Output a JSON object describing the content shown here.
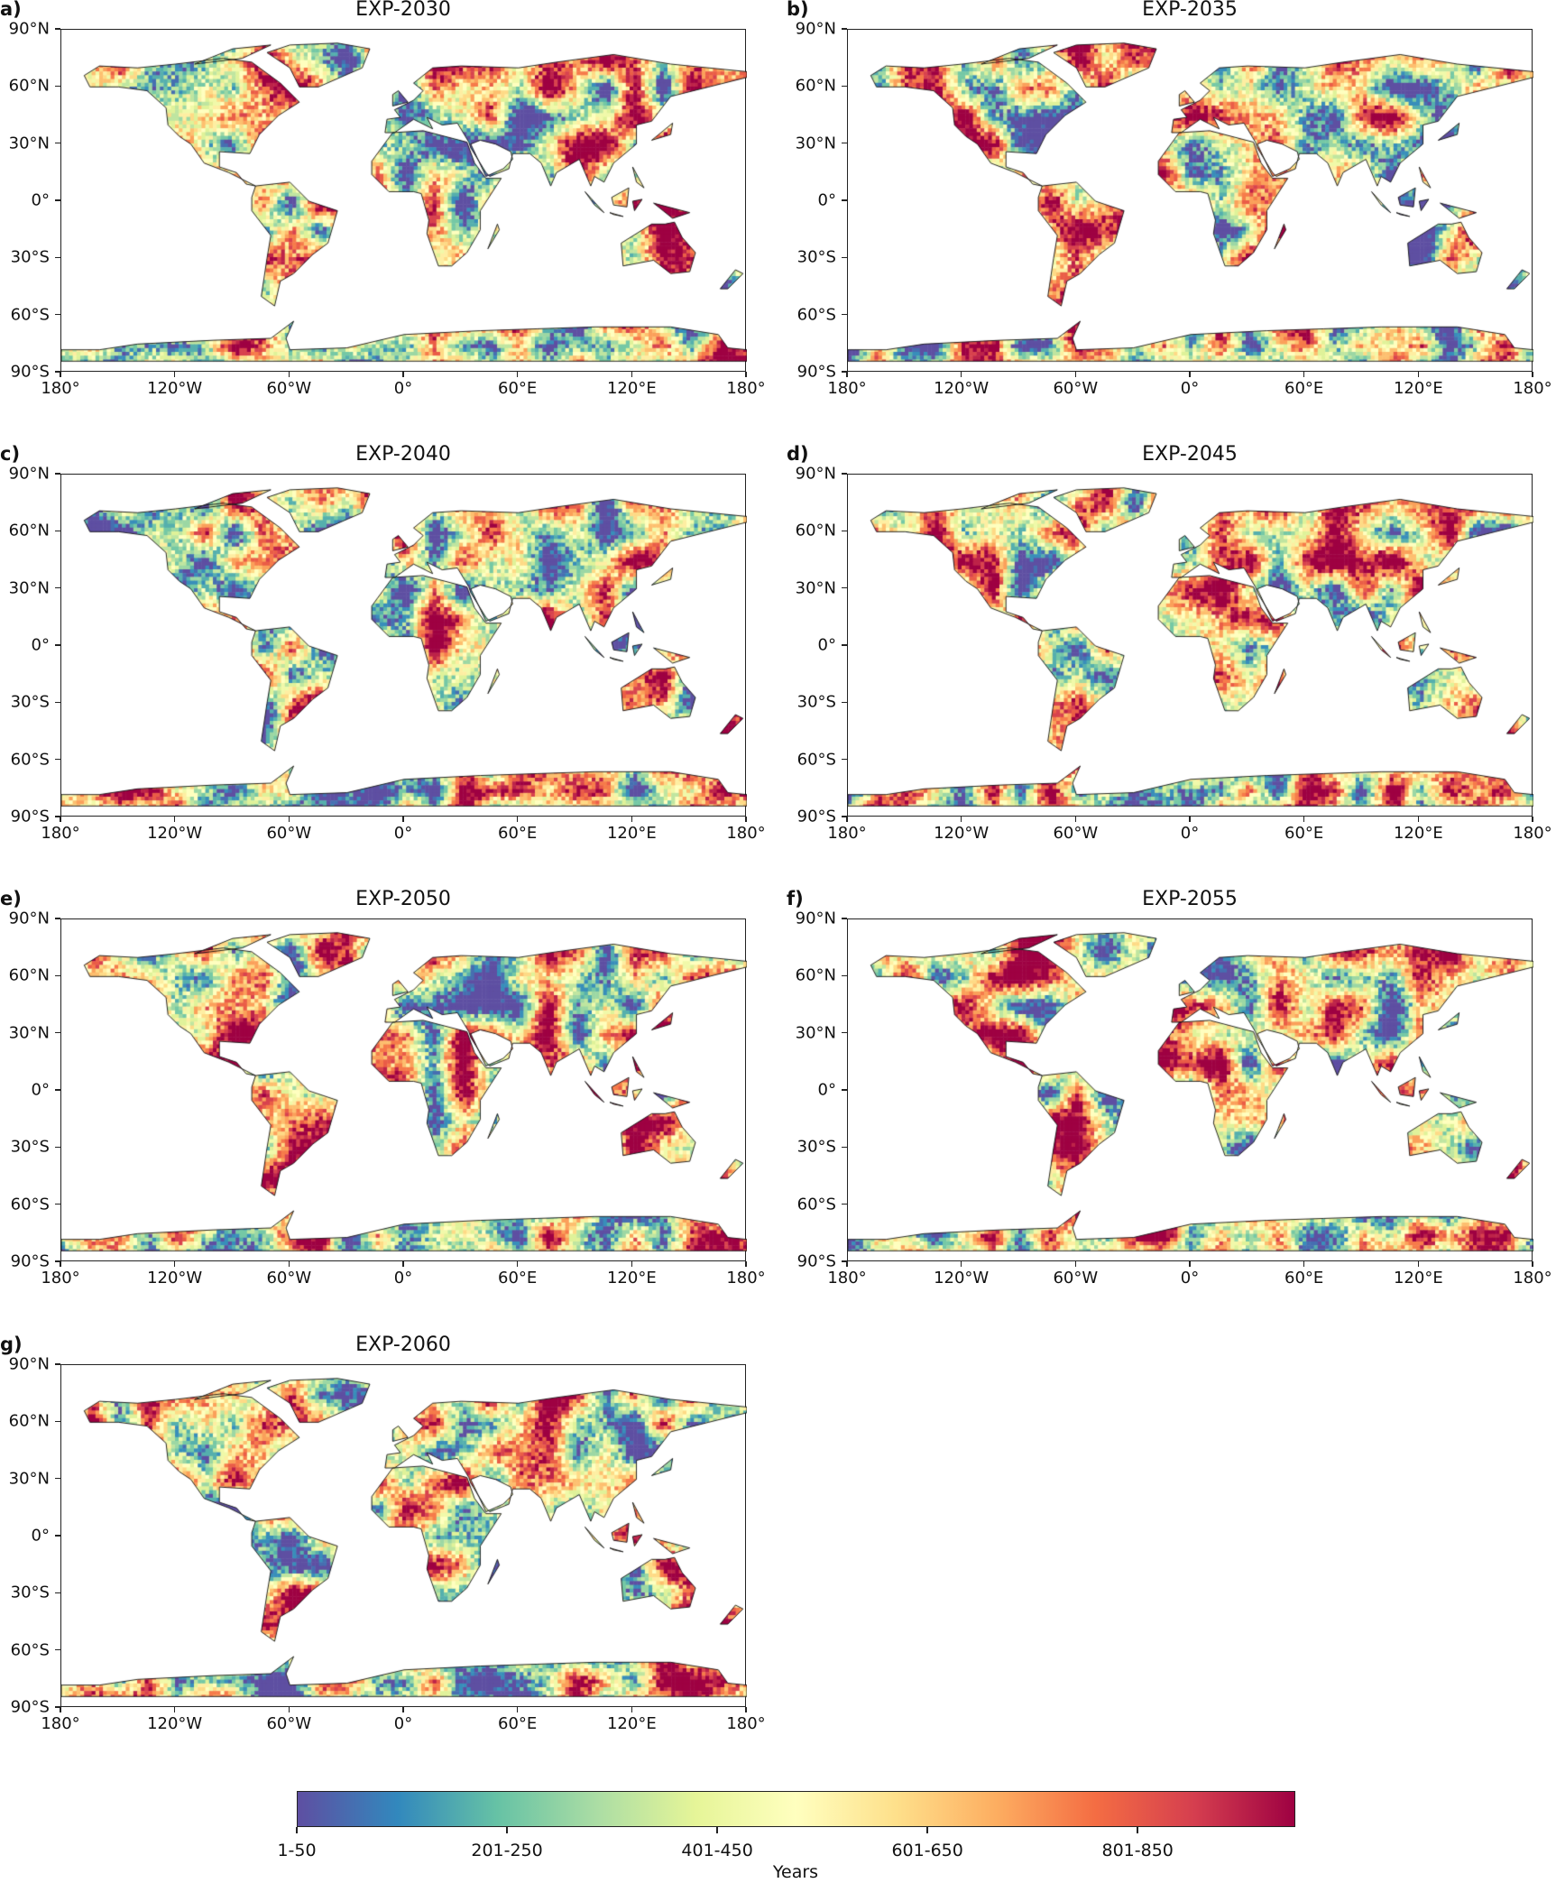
{
  "chart_data": {
    "type": "heatmap",
    "projection": "PlateCarree",
    "panels": [
      {
        "label": "a)",
        "title": "EXP-2030"
      },
      {
        "label": "b)",
        "title": "EXP-2035"
      },
      {
        "label": "c)",
        "title": "EXP-2040"
      },
      {
        "label": "d)",
        "title": "EXP-2045"
      },
      {
        "label": "e)",
        "title": "EXP-2050"
      },
      {
        "label": "f)",
        "title": "EXP-2055"
      },
      {
        "label": "g)",
        "title": "EXP-2060"
      }
    ],
    "x_ticks": [
      {
        "value": -180,
        "label": "180°"
      },
      {
        "value": -120,
        "label": "120°W"
      },
      {
        "value": -60,
        "label": "60°W"
      },
      {
        "value": 0,
        "label": "0°"
      },
      {
        "value": 60,
        "label": "60°E"
      },
      {
        "value": 120,
        "label": "120°E"
      },
      {
        "value": 180,
        "label": "180°"
      }
    ],
    "y_ticks": [
      {
        "value": 90,
        "label": "90°N"
      },
      {
        "value": 60,
        "label": "60°N"
      },
      {
        "value": 30,
        "label": "30°N"
      },
      {
        "value": 0,
        "label": "0°"
      },
      {
        "value": -30,
        "label": "30°S"
      },
      {
        "value": -60,
        "label": "60°S"
      },
      {
        "value": -90,
        "label": "90°S"
      }
    ],
    "xlim": [
      -180,
      180
    ],
    "ylim": [
      -90,
      90
    ],
    "colorbar": {
      "label": "Years",
      "colormap": "Spectral_r",
      "range": [
        1,
        950
      ],
      "bin_width": 50,
      "n_bins": 19,
      "colors": [
        "#5e4fa2",
        "#3288bd",
        "#66c2a5",
        "#abdda4",
        "#e6f598",
        "#ffffbf",
        "#fee08b",
        "#fdae61",
        "#f46d43",
        "#d53e4f",
        "#9e0142"
      ],
      "ticks": [
        {
          "bin": 0,
          "label": "1-50"
        },
        {
          "bin": 4,
          "label": "201-250"
        },
        {
          "bin": 8,
          "label": "401-450"
        },
        {
          "bin": 12,
          "label": "601-650"
        },
        {
          "bin": 16,
          "label": "801-850"
        }
      ]
    }
  }
}
